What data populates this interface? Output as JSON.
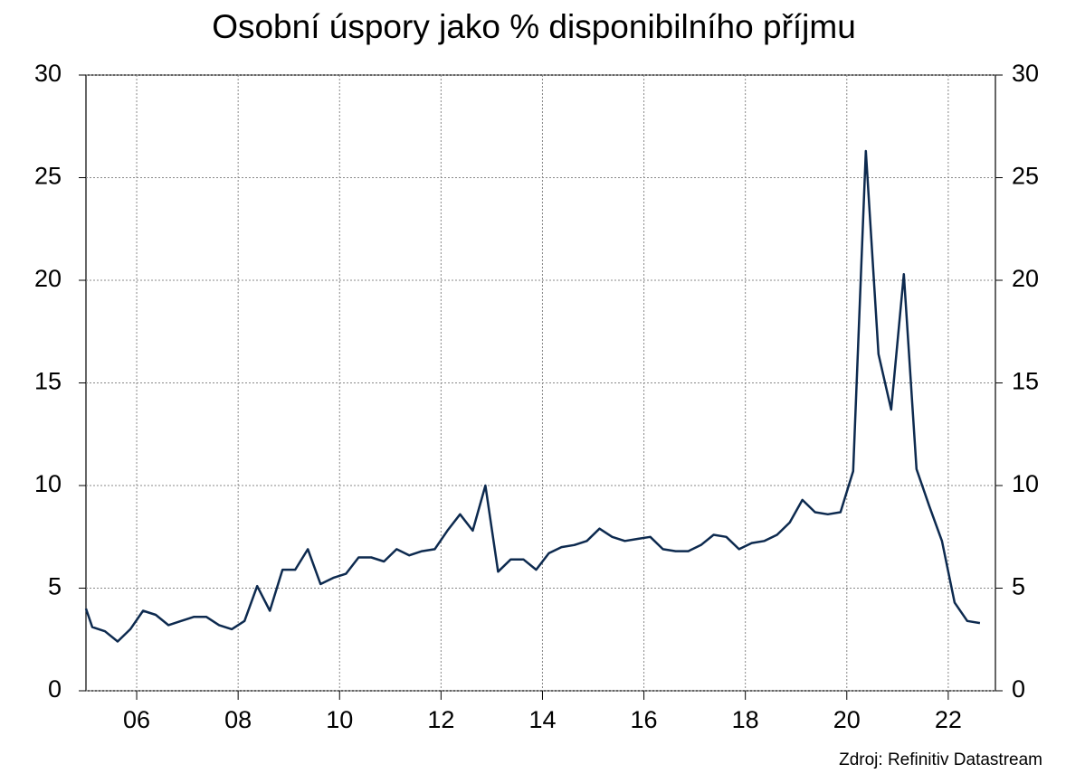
{
  "chart_data": {
    "type": "line",
    "title": "Osobní úspory jako % disponibilního příjmu",
    "source": "Zdroj: Refinitiv Datastream",
    "x": [
      2005,
      2005.125,
      2005.375,
      2005.625,
      2005.875,
      2006.125,
      2006.375,
      2006.625,
      2006.875,
      2007.125,
      2007.375,
      2007.625,
      2007.875,
      2008.125,
      2008.375,
      2008.625,
      2008.875,
      2009.125,
      2009.375,
      2009.625,
      2009.875,
      2010.125,
      2010.375,
      2010.625,
      2010.875,
      2011.125,
      2011.375,
      2011.625,
      2011.875,
      2012.125,
      2012.375,
      2012.625,
      2012.875,
      2013.125,
      2013.375,
      2013.625,
      2013.875,
      2014.125,
      2014.375,
      2014.625,
      2014.875,
      2015.125,
      2015.375,
      2015.625,
      2015.875,
      2016.125,
      2016.375,
      2016.625,
      2016.875,
      2017.125,
      2017.375,
      2017.625,
      2017.875,
      2018.125,
      2018.375,
      2018.625,
      2018.875,
      2019.125,
      2019.375,
      2019.625,
      2019.875,
      2020.125,
      2020.375,
      2020.625,
      2020.875,
      2021.125,
      2021.375,
      2021.625,
      2021.875,
      2022.125,
      2022.375,
      2022.625
    ],
    "series": [
      {
        "color": "#0d2a4f",
        "values": [
          4.0,
          3.1,
          2.9,
          2.4,
          3.0,
          3.9,
          3.7,
          3.2,
          3.4,
          3.6,
          3.6,
          3.2,
          3.0,
          3.4,
          5.1,
          3.9,
          5.9,
          5.9,
          6.9,
          5.2,
          5.5,
          5.7,
          6.5,
          6.5,
          6.3,
          6.9,
          6.6,
          6.8,
          6.9,
          7.8,
          8.6,
          7.8,
          10.0,
          5.8,
          6.4,
          6.4,
          5.9,
          6.7,
          7.0,
          7.1,
          7.3,
          7.9,
          7.5,
          7.3,
          7.4,
          7.5,
          6.9,
          6.8,
          6.8,
          7.1,
          7.6,
          7.5,
          6.9,
          7.2,
          7.3,
          7.6,
          8.2,
          9.3,
          8.7,
          8.6,
          8.7,
          10.7,
          26.3,
          16.4,
          13.7,
          20.3,
          10.8,
          9.0,
          7.3,
          4.3,
          3.4,
          3.3
        ]
      }
    ],
    "xlim": [
      2005,
      2022.93
    ],
    "xticks": [
      {
        "value": 2006,
        "label": "06"
      },
      {
        "value": 2008,
        "label": "08"
      },
      {
        "value": 2010,
        "label": "10"
      },
      {
        "value": 2012,
        "label": "12"
      },
      {
        "value": 2014,
        "label": "14"
      },
      {
        "value": 2016,
        "label": "16"
      },
      {
        "value": 2018,
        "label": "18"
      },
      {
        "value": 2020,
        "label": "20"
      },
      {
        "value": 2022,
        "label": "22"
      }
    ],
    "ylim": [
      0,
      30
    ],
    "yticks": [
      0,
      5,
      10,
      15,
      20,
      25,
      30
    ],
    "grid": true
  }
}
